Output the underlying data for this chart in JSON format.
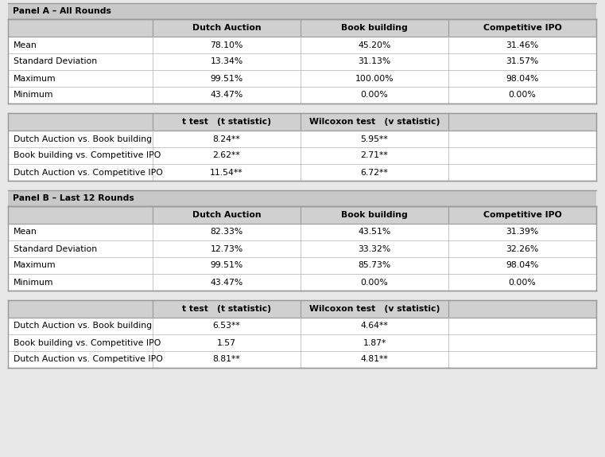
{
  "panel_a_header": "Panel A – All Rounds",
  "panel_b_header": "Panel B – Last 12 Rounds",
  "col_headers_stats": [
    "Dutch Auction",
    "Book building",
    "Competitive IPO"
  ],
  "col_headers_tests": [
    "t test   (t statistic)",
    "Wilcoxon test   (v statistic)",
    ""
  ],
  "panel_a_stats_rows": [
    [
      "Mean",
      "78.10%",
      "45.20%",
      "31.46%"
    ],
    [
      "Standard Deviation",
      "13.34%",
      "31.13%",
      "31.57%"
    ],
    [
      "Maximum",
      "99.51%",
      "100.00%",
      "98.04%"
    ],
    [
      "Minimum",
      "43.47%",
      "0.00%",
      "0.00%"
    ]
  ],
  "panel_a_test_rows": [
    [
      "Dutch Auction vs. Book building",
      "8.24**",
      "5.95**",
      ""
    ],
    [
      "Book building vs. Competitive IPO",
      "2.62**",
      "2.71**",
      ""
    ],
    [
      "Dutch Auction vs. Competitive IPO",
      "11.54**",
      "6.72**",
      ""
    ]
  ],
  "panel_b_stats_rows": [
    [
      "Mean",
      "82.33%",
      "43.51%",
      "31.39%"
    ],
    [
      "Standard Deviation",
      "12.73%",
      "33.32%",
      "32.26%"
    ],
    [
      "Maximum",
      "99.51%",
      "85.73%",
      "98.04%"
    ],
    [
      "Minimum",
      "43.47%",
      "0.00%",
      "0.00%"
    ]
  ],
  "panel_b_test_rows": [
    [
      "Dutch Auction vs. Book building",
      "6.53**",
      "4.64**",
      ""
    ],
    [
      "Book building vs. Competitive IPO",
      "1.57",
      "1.87*",
      ""
    ],
    [
      "Dutch Auction vs. Competitive IPO",
      "8.81**",
      "4.81**",
      ""
    ]
  ],
  "bg_color": "#e8e8e8",
  "header_bg": "#d0d0d0",
  "white_bg": "#ffffff",
  "panel_header_bg": "#c8c8c8",
  "font_size": 7.8,
  "header_font_size": 7.8,
  "fig_w": 7.61,
  "fig_h": 5.74,
  "dpi": 100
}
